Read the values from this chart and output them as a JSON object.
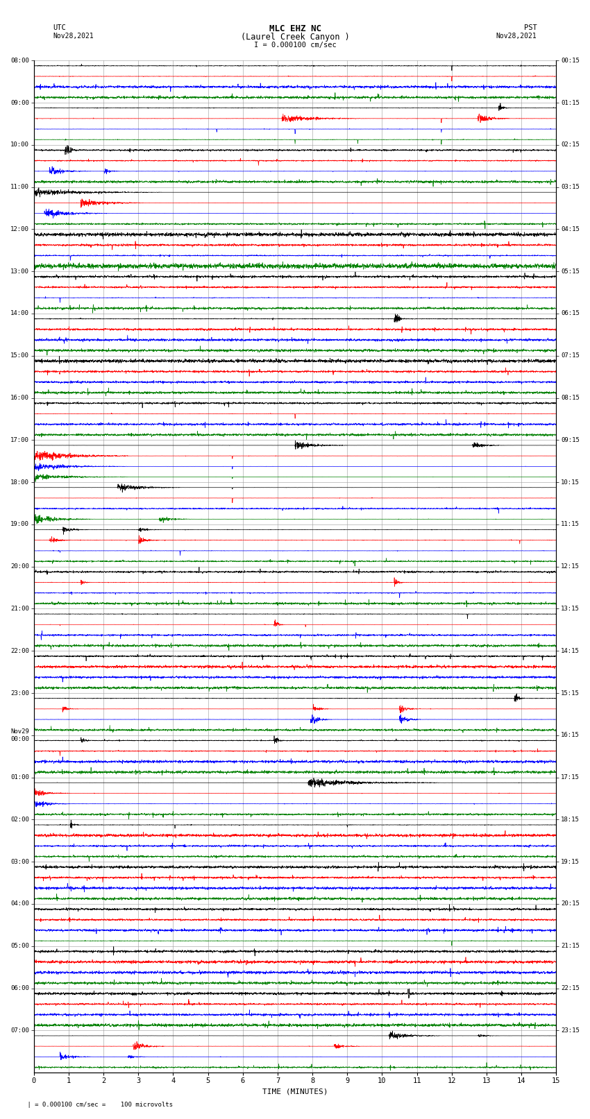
{
  "title_line1": "MLC EHZ NC",
  "title_line2": "(Laurel Creek Canyon )",
  "title_line3": "I = 0.000100 cm/sec",
  "left_label_top": "UTC",
  "left_label_date": "Nov28,2021",
  "right_label_top": "PST",
  "right_label_date": "Nov28,2021",
  "xlabel": "TIME (MINUTES)",
  "footnote": "= 0.000100 cm/sec =    100 microvolts",
  "xmin": 0,
  "xmax": 15,
  "utc_times": [
    "08:00",
    "09:00",
    "10:00",
    "11:00",
    "12:00",
    "13:00",
    "14:00",
    "15:00",
    "16:00",
    "17:00",
    "18:00",
    "19:00",
    "20:00",
    "21:00",
    "22:00",
    "23:00",
    "Nov29\n00:00",
    "01:00",
    "02:00",
    "03:00",
    "04:00",
    "05:00",
    "06:00",
    "07:00"
  ],
  "pst_times": [
    "00:15",
    "01:15",
    "02:15",
    "03:15",
    "04:15",
    "05:15",
    "06:15",
    "07:15",
    "08:15",
    "09:15",
    "10:15",
    "11:15",
    "12:15",
    "13:15",
    "14:15",
    "15:15",
    "16:15",
    "17:15",
    "18:15",
    "19:15",
    "20:15",
    "21:15",
    "22:15",
    "23:15"
  ],
  "n_rows": 24,
  "n_traces_per_row": 4,
  "trace_colors": [
    "black",
    "red",
    "blue",
    "green"
  ],
  "bg_color": "white",
  "grid_color": "#aaaaaa",
  "seed": 42
}
